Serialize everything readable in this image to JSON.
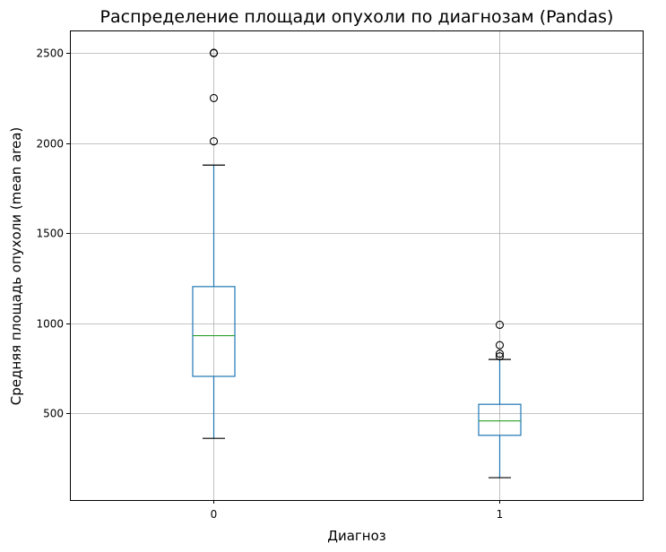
{
  "chart_data": {
    "type": "box",
    "title": "Распределение площади опухоли по диагнозам (Pandas)",
    "xlabel": "Диагноз",
    "ylabel": "Средняя площадь опухоли (mean area)",
    "categories": [
      "0",
      "1"
    ],
    "ylim": [
      20,
      2625
    ],
    "yticks": [
      500,
      1000,
      1500,
      2000,
      2500
    ],
    "grid": true,
    "colors": {
      "box": "#1f77b4",
      "median": "#2ca02c",
      "cap": "#000000",
      "flier": "#000000"
    },
    "boxes": [
      {
        "category": "0",
        "whisker_low": 362,
        "q1": 706,
        "median": 932,
        "q3": 1204,
        "whisker_high": 1878,
        "fliers": [
          2010,
          2250,
          2499,
          2501
        ]
      },
      {
        "category": "1",
        "whisker_low": 144,
        "q1": 379,
        "median": 459,
        "q3": 551,
        "whisker_high": 800,
        "fliers": [
          817,
          832,
          879,
          992
        ]
      }
    ]
  }
}
